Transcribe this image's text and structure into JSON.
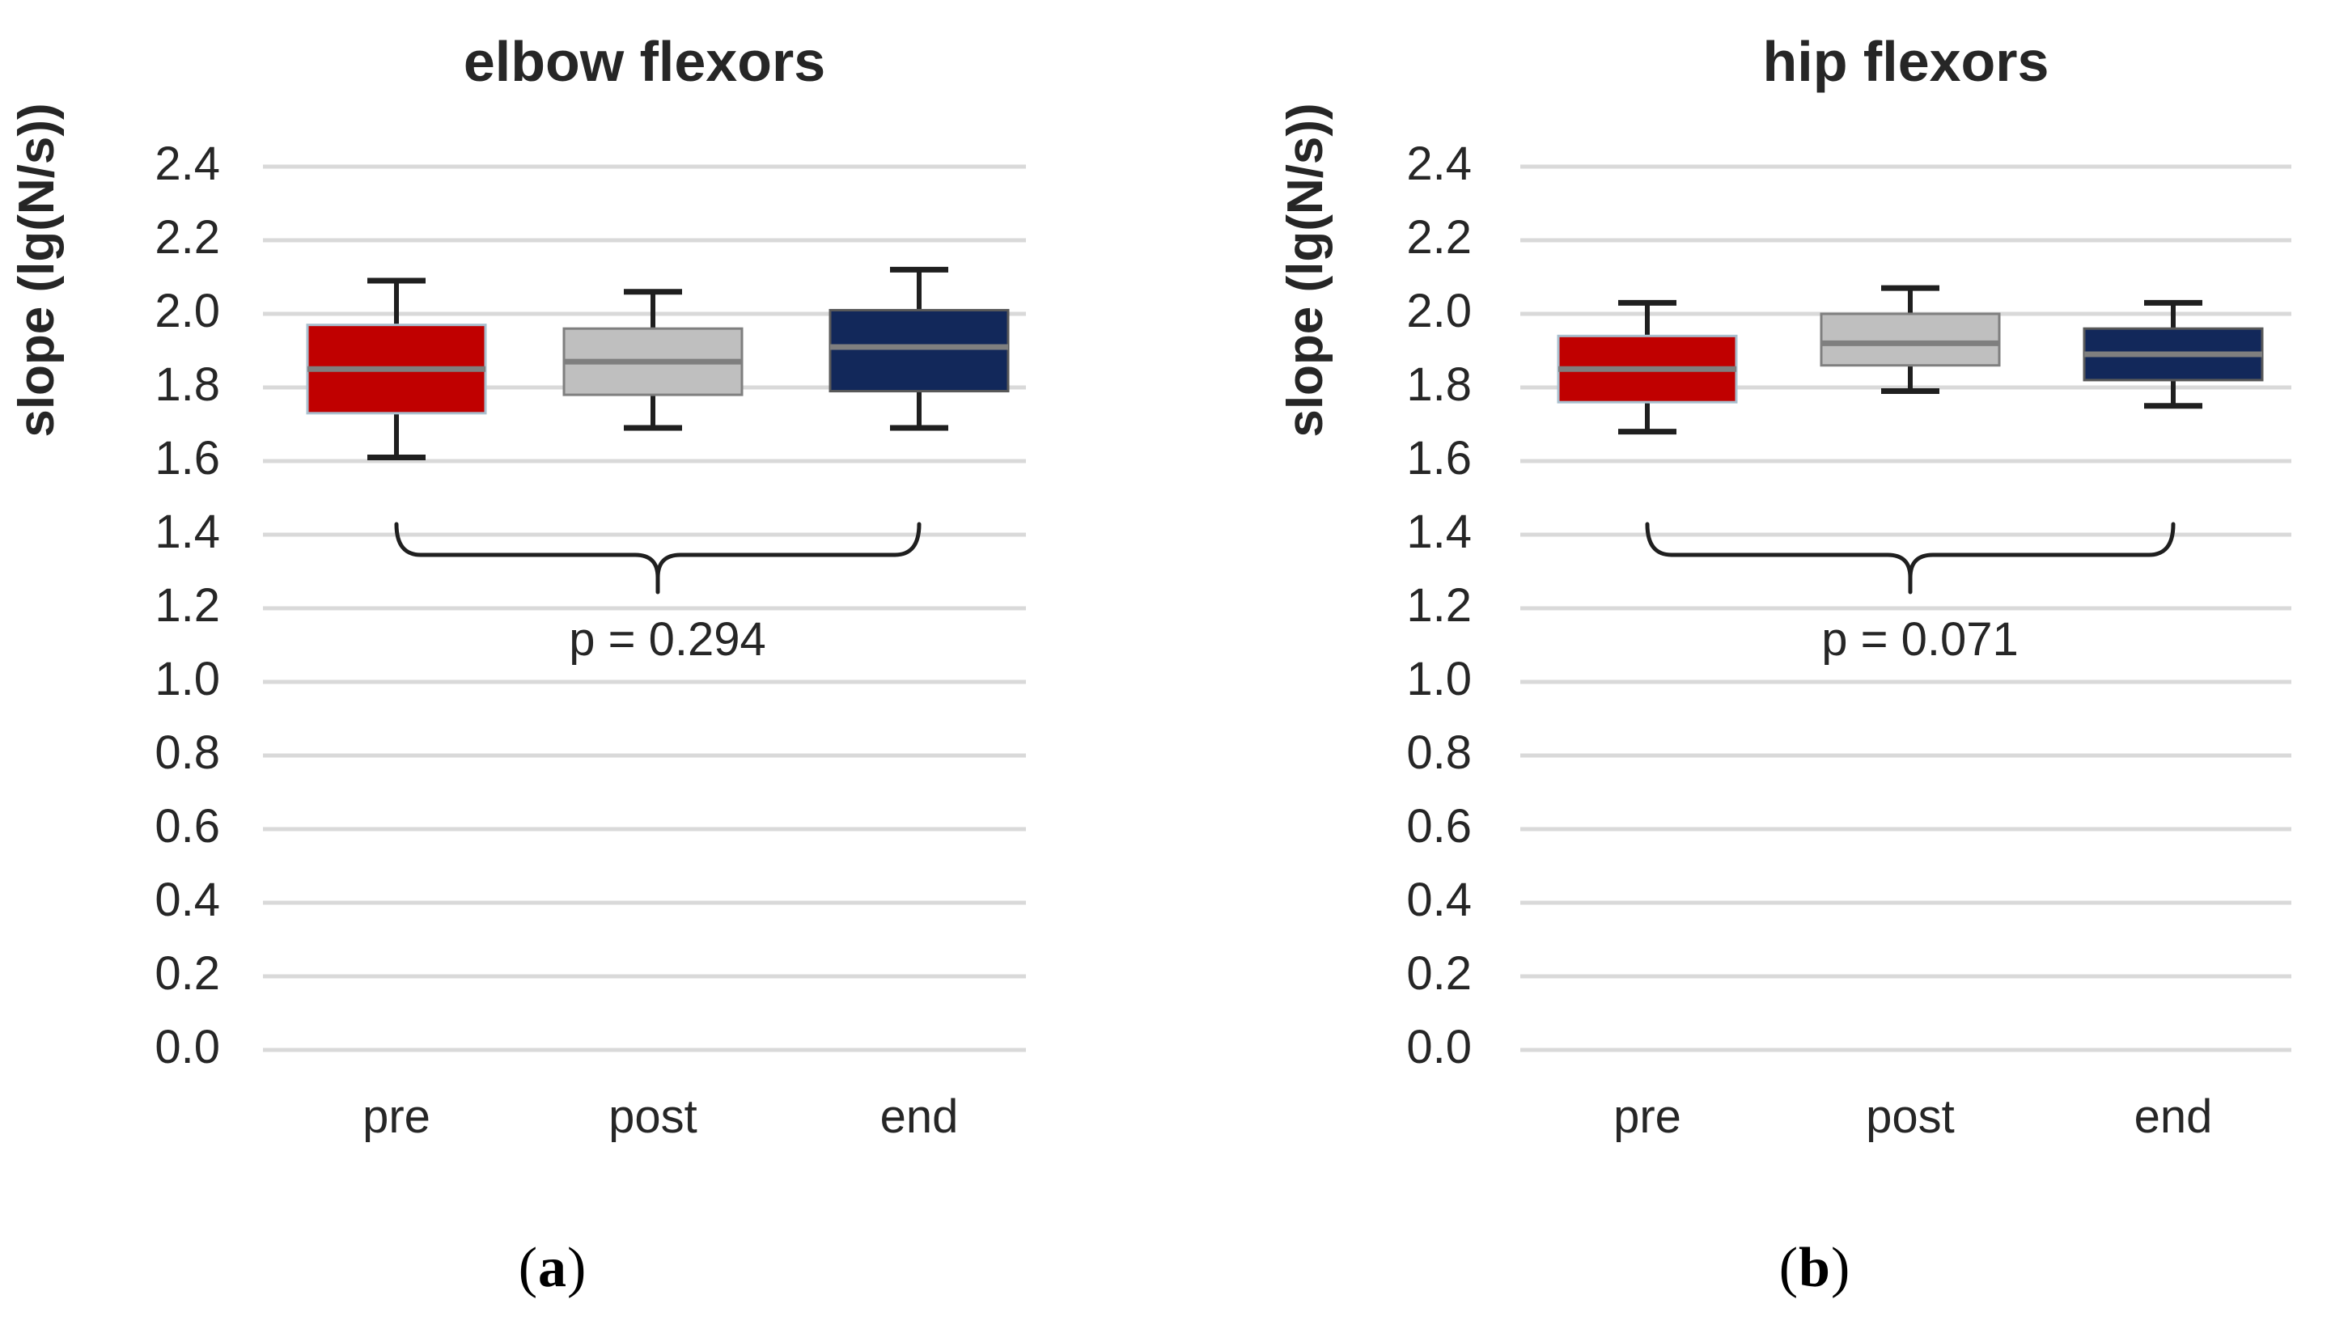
{
  "figure": {
    "background": "#FFFFFF"
  },
  "colors": {
    "text": "#262626",
    "gridline": "#D9D9D9",
    "whisker": "#1F1F1F",
    "median": "#7F7F7F",
    "pre_fill": "#C00000",
    "pre_border": "#A9C0CF",
    "post_fill": "#BFBFBF",
    "post_border": "#7F7F7F",
    "end_fill": "#12285A",
    "end_border": "#595959"
  },
  "captions": {
    "a": {
      "open": "(",
      "letter": "a",
      "close": ")"
    },
    "b": {
      "open": "(",
      "letter": "b",
      "close": ")"
    }
  },
  "chart_data": [
    {
      "type": "box",
      "title": "elbow flexors",
      "ylabel": "slope (lg(N/s))",
      "xlabel": "",
      "categories": [
        "pre",
        "post",
        "end"
      ],
      "ylim": [
        0.0,
        2.4
      ],
      "ytick_step": 0.2,
      "yticks": [
        "2.4",
        "2.2",
        "2.0",
        "1.8",
        "1.6",
        "1.4",
        "1.2",
        "1.0",
        "0.8",
        "0.6",
        "0.4",
        "0.2",
        "0.0"
      ],
      "grid": "horizontal",
      "legend": "none",
      "series": [
        {
          "name": "pre",
          "whisker_low": 1.61,
          "q1": 1.73,
          "median": 1.85,
          "q3": 1.97,
          "whisker_high": 2.09,
          "fill": "#C00000",
          "border": "#A9C0CF"
        },
        {
          "name": "post",
          "whisker_low": 1.69,
          "q1": 1.78,
          "median": 1.87,
          "q3": 1.96,
          "whisker_high": 2.06,
          "fill": "#BFBFBF",
          "border": "#7F7F7F"
        },
        {
          "name": "end",
          "whisker_low": 1.69,
          "q1": 1.79,
          "median": 1.91,
          "q3": 2.01,
          "whisker_high": 2.12,
          "fill": "#12285A",
          "border": "#595959"
        }
      ],
      "annotation": {
        "text": "p = 0.294",
        "bracket_from": "pre",
        "bracket_to": "end"
      },
      "panel_caption": "(a)"
    },
    {
      "type": "box",
      "title": "hip flexors",
      "ylabel": "slope (lg(N/s))",
      "xlabel": "",
      "categories": [
        "pre",
        "post",
        "end"
      ],
      "ylim": [
        0.0,
        2.4
      ],
      "ytick_step": 0.2,
      "yticks": [
        "2.4",
        "2.2",
        "2.0",
        "1.8",
        "1.6",
        "1.4",
        "1.2",
        "1.0",
        "0.8",
        "0.6",
        "0.4",
        "0.2",
        "0.0"
      ],
      "grid": "horizontal",
      "legend": "none",
      "series": [
        {
          "name": "pre",
          "whisker_low": 1.68,
          "q1": 1.76,
          "median": 1.85,
          "q3": 1.94,
          "whisker_high": 2.03,
          "fill": "#C00000",
          "border": "#A9C0CF"
        },
        {
          "name": "post",
          "whisker_low": 1.79,
          "q1": 1.86,
          "median": 1.92,
          "q3": 2.0,
          "whisker_high": 2.07,
          "fill": "#BFBFBF",
          "border": "#7F7F7F"
        },
        {
          "name": "end",
          "whisker_low": 1.75,
          "q1": 1.82,
          "median": 1.89,
          "q3": 1.96,
          "whisker_high": 2.03,
          "fill": "#12285A",
          "border": "#595959"
        }
      ],
      "annotation": {
        "text": "p = 0.071",
        "bracket_from": "pre",
        "bracket_to": "end"
      },
      "panel_caption": "(b)"
    }
  ]
}
